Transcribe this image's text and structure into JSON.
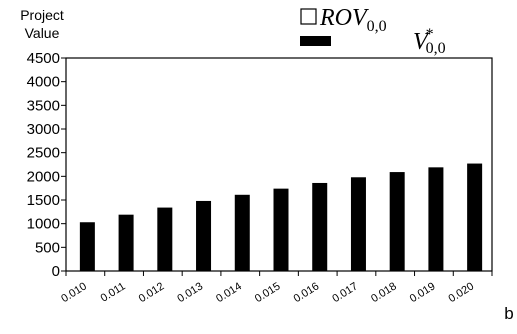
{
  "chart_data": {
    "type": "bar",
    "title": "",
    "ylabel": "Project Value",
    "ylabel_lines": [
      "Project",
      "Value"
    ],
    "xlabel": "b",
    "categories": [
      "0.010",
      "0.011",
      "0.012",
      "0.013",
      "0.014",
      "0.015",
      "0.016",
      "0.017",
      "0.018",
      "0.019",
      "0.020"
    ],
    "ylim": [
      0,
      4500
    ],
    "yticks": [
      "0",
      "500",
      "1000",
      "1500",
      "2000",
      "2500",
      "3000",
      "3500",
      "4000",
      "4500"
    ],
    "grid": false,
    "legend_position": "top-right",
    "series": [
      {
        "name": "ROV0,0",
        "legend_main": "ROV",
        "legend_sub": "0,0",
        "legend_sup": "",
        "fill": "#ffffff",
        "values": [
          0,
          0,
          0,
          0,
          0,
          0,
          0,
          0,
          0,
          0,
          0
        ]
      },
      {
        "name": "V*0,0",
        "legend_main": "V",
        "legend_sub": "0,0",
        "legend_sup": "*",
        "fill": "#000000",
        "values": [
          1030,
          1190,
          1340,
          1480,
          1610,
          1740,
          1860,
          1980,
          2090,
          2190,
          2270
        ]
      }
    ]
  }
}
